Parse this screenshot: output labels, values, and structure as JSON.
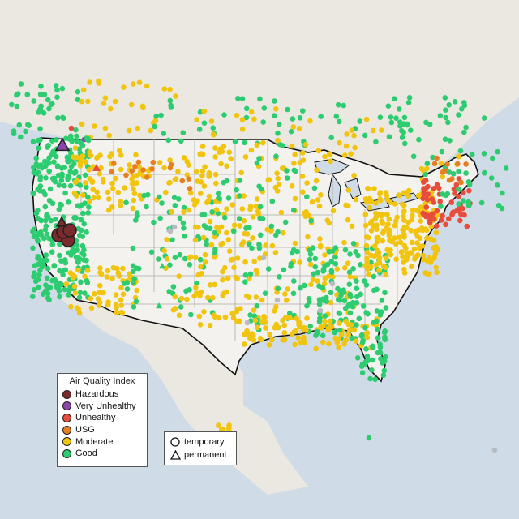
{
  "colors": {
    "ocean": "#cfdbe6",
    "land": "#efece6",
    "us_land": "#f2f0eb",
    "border": "#111111",
    "state_lines": "#a9a9a9",
    "hazardous": "#7b2b2b",
    "very_unhealthy": "#8e44ad",
    "unhealthy": "#e74c3c",
    "usg": "#e67e22",
    "moderate": "#f1c40f",
    "good": "#2ecc71",
    "no_data": "#b7bcc2"
  },
  "legend": {
    "title": "Air Quality Index",
    "categories": [
      {
        "label": "Hazardous",
        "color": "#7b2b2b"
      },
      {
        "label": "Very Unhealthy",
        "color": "#8e44ad"
      },
      {
        "label": "Unhealthy",
        "color": "#e74c3c"
      },
      {
        "label": "USG",
        "color": "#e67e22"
      },
      {
        "label": "Moderate",
        "color": "#f1c40f"
      },
      {
        "label": "Good",
        "color": "#2ecc71"
      }
    ]
  },
  "type_legend": {
    "temporary_label": "temporary",
    "permanent_label": "permanent",
    "temporary_icon": "circle-icon",
    "permanent_icon": "triangle-icon"
  }
}
